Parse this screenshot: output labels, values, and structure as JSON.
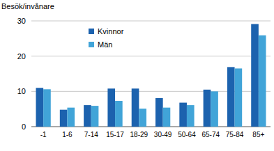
{
  "chart_data": {
    "type": "bar",
    "y_label": "Besök/invånare",
    "categories": [
      "-1",
      "1-6",
      "7-14",
      "15-17",
      "18-29",
      "30-49",
      "50-64",
      "65-74",
      "75-84",
      "85+"
    ],
    "series": [
      {
        "name": "Kvinnor",
        "color": "#1c62ae",
        "values": [
          11,
          4.8,
          6.1,
          10.8,
          10.8,
          8.1,
          6.8,
          10.5,
          16.9,
          29.1
        ]
      },
      {
        "name": "Män",
        "color": "#41a4d8",
        "values": [
          10.6,
          5.4,
          5.9,
          7.3,
          5.1,
          5.4,
          6.1,
          10.0,
          16.5,
          25.9
        ]
      }
    ],
    "ylim": [
      0,
      30
    ],
    "yticks": [
      0,
      10,
      20,
      30
    ],
    "grid": true,
    "legend": "top-left"
  }
}
